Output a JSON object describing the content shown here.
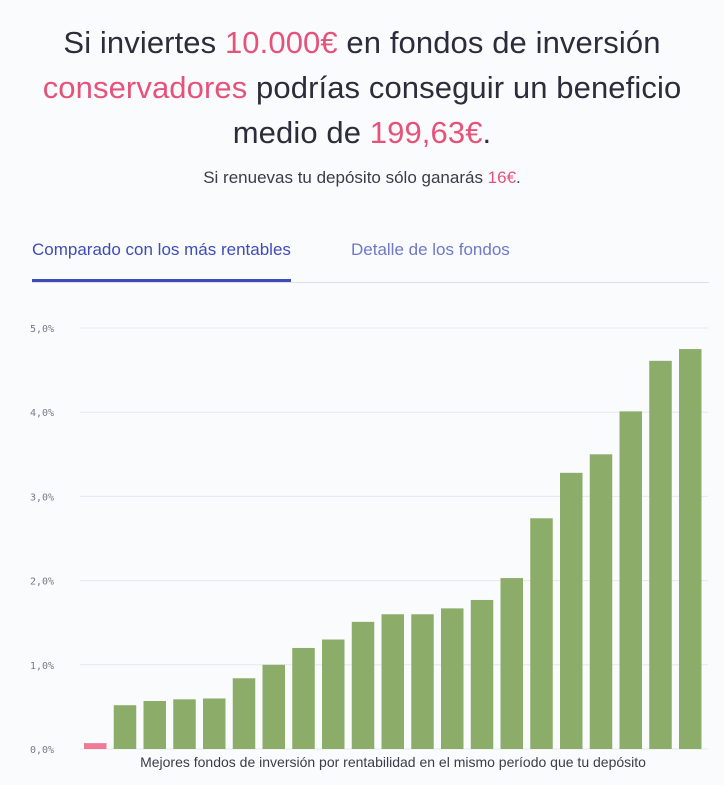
{
  "headline": {
    "part1": "Si inviertes ",
    "amount": "10.000€",
    "part2": " en fondos de inversión",
    "type": "conservadores",
    "part3": " podrías conseguir un beneficio",
    "part4": "medio de ",
    "profit": "199,63€",
    "part5": "."
  },
  "subline": {
    "text": "Si renuevas tu depósito sólo ganarás ",
    "amount": "16€",
    "end": "."
  },
  "tabs": [
    {
      "label": "Comparado con los más rentables",
      "active": true
    },
    {
      "label": "Detalle de los fondos",
      "active": false
    }
  ],
  "colors": {
    "accent": "#e5537a",
    "fund_bar": "#8cac69",
    "deposit_bar": "#f07a95",
    "tab_active": "#3f4cb8",
    "tab_inactive": "#6f78c9"
  },
  "chart_data": {
    "type": "bar",
    "xlabel": "Mejores fondos de inversión por rentabilidad en el mismo período que tu depósito",
    "ylabel": "",
    "ylim": [
      0,
      5
    ],
    "yticks": [
      "0,0%",
      "1,0%",
      "2,0%",
      "3,0%",
      "4,0%",
      "5,0%"
    ],
    "grid": true,
    "deposit_value": 0.07,
    "values": [
      0.07,
      0.52,
      0.57,
      0.59,
      0.6,
      0.84,
      1.0,
      1.2,
      1.3,
      1.51,
      1.6,
      1.6,
      1.67,
      1.77,
      2.03,
      2.74,
      3.28,
      3.5,
      4.01,
      4.61,
      4.75
    ]
  }
}
